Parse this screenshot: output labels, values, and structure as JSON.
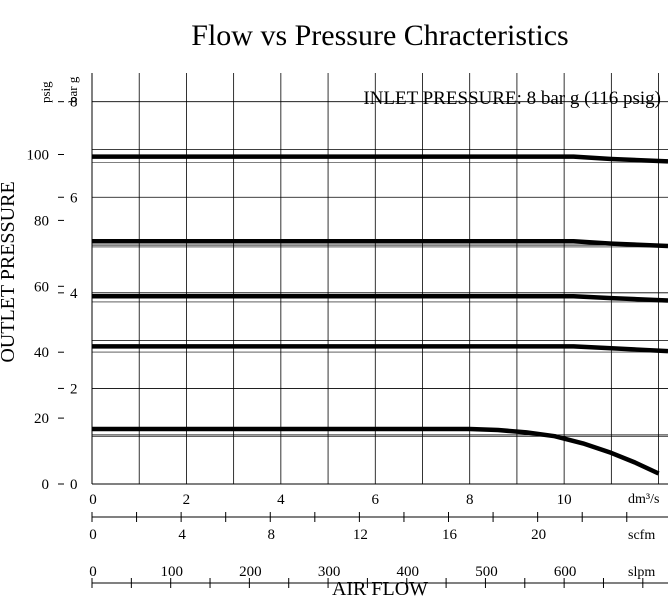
{
  "chart_data": {
    "type": "line",
    "title": "Flow vs Pressure Chracteristics",
    "annotation": "INLET PRESSURE: 8 bar g (116 psig)",
    "xlabel": "AIR FLOW",
    "ylabel": "OUTLET PRESSURE",
    "x_unit": "dm³/s",
    "xlim": [
      0,
      12.2
    ],
    "x_ticks": [
      0,
      2,
      4,
      6,
      8,
      10
    ],
    "grid": true,
    "y_axes": {
      "bar": {
        "unit": "bar g",
        "lim": [
          0,
          8.6
        ],
        "ticks": [
          0,
          2,
          4,
          6,
          8
        ]
      },
      "psig": {
        "unit": "psig",
        "ticks": [
          0,
          20,
          40,
          60,
          80,
          100
        ]
      }
    },
    "secondary_x_axes": [
      {
        "unit": "scfm",
        "ticks": [
          0,
          4,
          8,
          12,
          16,
          20
        ]
      },
      {
        "unit": "slpm",
        "ticks": [
          0,
          100,
          200,
          300,
          400,
          500,
          600
        ]
      }
    ],
    "series": [
      {
        "x": [
          0,
          10.2,
          11,
          12.2
        ],
        "y": [
          6.85,
          6.85,
          6.8,
          6.75
        ]
      },
      {
        "x": [
          0,
          10.2,
          11,
          12.2
        ],
        "y": [
          5.08,
          5.08,
          5.03,
          4.98
        ]
      },
      {
        "x": [
          0,
          10.2,
          11,
          12.2
        ],
        "y": [
          3.93,
          3.93,
          3.89,
          3.84
        ]
      },
      {
        "x": [
          0,
          10.2,
          11,
          12.2
        ],
        "y": [
          2.88,
          2.88,
          2.84,
          2.78
        ]
      },
      {
        "x": [
          0,
          8.0,
          8.6,
          9.2,
          9.8,
          10.4,
          11.0,
          11.5,
          12.0
        ],
        "y": [
          1.15,
          1.15,
          1.13,
          1.08,
          1.0,
          0.85,
          0.65,
          0.45,
          0.22
        ]
      }
    ]
  }
}
